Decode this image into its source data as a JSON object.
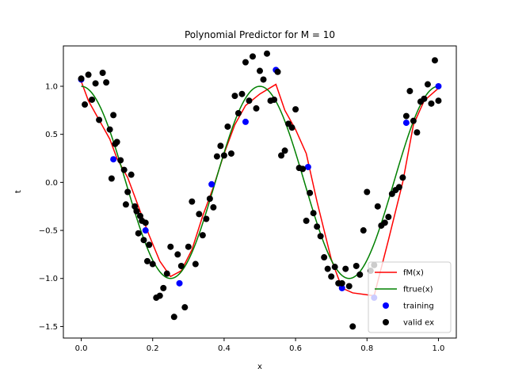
{
  "chart_data": {
    "type": "line",
    "title": "Polynomial Predictor for M = 10",
    "xlabel": "x",
    "ylabel": "t",
    "xlim": [
      -0.05,
      1.05
    ],
    "ylim": [
      -1.62,
      1.42
    ],
    "xticks": [
      0.0,
      0.2,
      0.4,
      0.6,
      0.8,
      1.0
    ],
    "xtick_labels": [
      "0.0",
      "0.2",
      "0.4",
      "0.6",
      "0.8",
      "1.0"
    ],
    "yticks": [
      -1.5,
      -1.0,
      -0.5,
      0.0,
      0.5,
      1.0
    ],
    "ytick_labels": [
      "−1.5",
      "−1.0",
      "−0.5",
      "0.0",
      "0.5",
      "1.0"
    ],
    "grid": false,
    "legend_position": "lower-right",
    "series": [
      {
        "name": "fM(x)",
        "kind": "line",
        "color": "#ff0000",
        "x": [
          0.0,
          0.02,
          0.05,
          0.08,
          0.1,
          0.13,
          0.16,
          0.19,
          0.22,
          0.25,
          0.28,
          0.31,
          0.34,
          0.37,
          0.4,
          0.43,
          0.46,
          0.5,
          0.545,
          0.57,
          0.6,
          0.63,
          0.66,
          0.7,
          0.73,
          0.76,
          0.8,
          0.82,
          0.86,
          0.9,
          0.93,
          0.96,
          1.0
        ],
        "y": [
          1.05,
          0.85,
          0.65,
          0.45,
          0.25,
          0.05,
          -0.25,
          -0.55,
          -0.82,
          -0.98,
          -0.92,
          -0.7,
          -0.35,
          -0.05,
          0.3,
          0.6,
          0.8,
          0.92,
          1.02,
          0.75,
          0.55,
          0.3,
          -0.2,
          -0.8,
          -1.1,
          -1.15,
          -1.17,
          -1.18,
          -0.6,
          0.0,
          0.6,
          0.85,
          0.98
        ]
      },
      {
        "name": "ftrue(x)",
        "kind": "line",
        "color": "#008000",
        "function": "cos(4*pi*x)"
      },
      {
        "name": "training",
        "kind": "scatter",
        "color": "#0000ff",
        "x": [
          0.0,
          0.09,
          0.18,
          0.275,
          0.365,
          0.46,
          0.545,
          0.635,
          0.73,
          0.82,
          0.91,
          1.0
        ],
        "y": [
          1.07,
          0.24,
          -0.5,
          -1.05,
          -0.02,
          0.63,
          1.17,
          0.16,
          -1.1,
          -1.2,
          0.62,
          1.0
        ]
      },
      {
        "name": "valid ex",
        "kind": "scatter",
        "color": "#000000",
        "x": [
          0.0,
          0.01,
          0.02,
          0.03,
          0.04,
          0.05,
          0.06,
          0.07,
          0.08,
          0.085,
          0.09,
          0.095,
          0.1,
          0.11,
          0.12,
          0.125,
          0.13,
          0.14,
          0.15,
          0.155,
          0.16,
          0.165,
          0.17,
          0.175,
          0.18,
          0.185,
          0.19,
          0.2,
          0.21,
          0.22,
          0.23,
          0.24,
          0.25,
          0.26,
          0.27,
          0.28,
          0.29,
          0.3,
          0.31,
          0.32,
          0.33,
          0.34,
          0.35,
          0.36,
          0.37,
          0.38,
          0.39,
          0.4,
          0.41,
          0.42,
          0.43,
          0.44,
          0.45,
          0.46,
          0.47,
          0.48,
          0.49,
          0.5,
          0.51,
          0.52,
          0.53,
          0.54,
          0.55,
          0.56,
          0.57,
          0.58,
          0.59,
          0.6,
          0.61,
          0.62,
          0.63,
          0.64,
          0.65,
          0.66,
          0.67,
          0.68,
          0.69,
          0.7,
          0.71,
          0.72,
          0.73,
          0.74,
          0.75,
          0.76,
          0.77,
          0.78,
          0.79,
          0.8,
          0.81,
          0.82,
          0.83,
          0.84,
          0.85,
          0.86,
          0.87,
          0.88,
          0.89,
          0.9,
          0.91,
          0.92,
          0.93,
          0.94,
          0.95,
          0.96,
          0.97,
          0.98,
          0.99,
          1.0
        ],
        "y": [
          1.08,
          0.81,
          1.12,
          0.86,
          1.03,
          0.65,
          1.14,
          1.04,
          0.55,
          0.04,
          0.7,
          0.4,
          0.42,
          0.23,
          0.13,
          -0.23,
          -0.1,
          0.08,
          -0.25,
          -0.3,
          -0.53,
          -0.35,
          -0.4,
          -0.6,
          -0.42,
          -0.82,
          -0.65,
          -0.85,
          -1.2,
          -1.18,
          -1.1,
          -0.95,
          -0.67,
          -1.4,
          -0.75,
          -0.87,
          -1.3,
          -0.67,
          -0.2,
          -0.85,
          -0.33,
          -0.55,
          -0.38,
          -0.17,
          -0.26,
          0.27,
          0.38,
          0.28,
          0.58,
          0.3,
          0.9,
          0.72,
          0.92,
          1.25,
          0.85,
          1.31,
          0.77,
          1.16,
          1.07,
          1.34,
          0.85,
          0.86,
          1.15,
          0.28,
          0.33,
          0.61,
          0.57,
          0.76,
          0.15,
          0.14,
          -0.4,
          -0.11,
          -0.32,
          -0.46,
          -0.56,
          -0.78,
          -0.9,
          -0.98,
          -0.88,
          -1.05,
          -1.05,
          -0.9,
          -1.08,
          -1.5,
          -0.87,
          -0.96,
          -0.5,
          -0.1,
          -0.92,
          -0.86,
          -0.25,
          -0.45,
          -0.42,
          -0.36,
          -0.12,
          -0.08,
          -0.05,
          0.05,
          0.69,
          0.95,
          0.64,
          0.52,
          0.84,
          0.87,
          1.02,
          0.82,
          1.27,
          0.85
        ]
      }
    ]
  }
}
